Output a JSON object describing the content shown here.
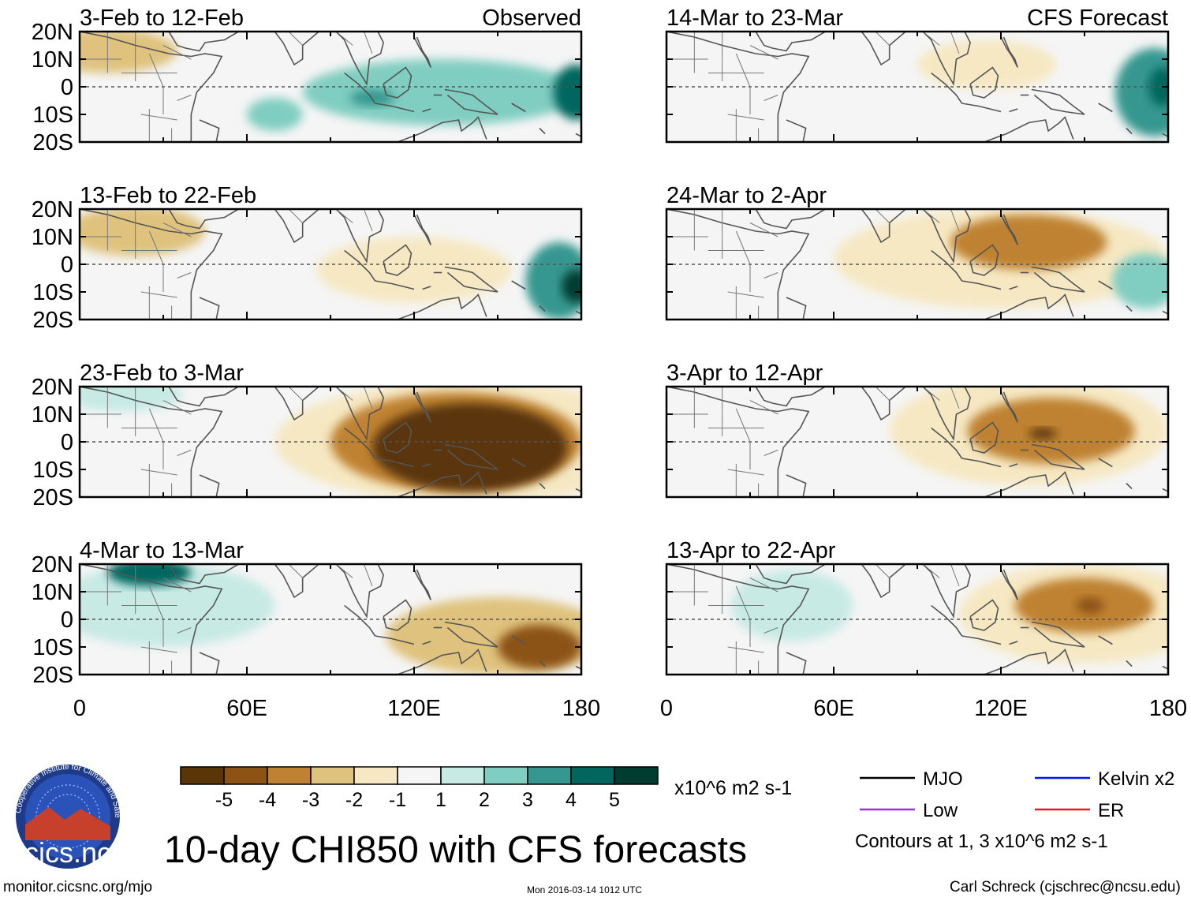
{
  "title": "10-day CHI850 with CFS forecasts",
  "footer": {
    "url": "monitor.cicsnc.org/mjo",
    "timestamp": "Mon 2016-03-14 1012 UTC",
    "author": "Carl Schreck (cjschrec@ncsu.edu)"
  },
  "logo": {
    "text": "cics.nc",
    "ring_text": "Cooperative Institute for Climate and Satellites"
  },
  "column_labels": {
    "left": "Observed",
    "right": "CFS Forecast"
  },
  "colorbar": {
    "colors": [
      "#5a3508",
      "#8c5314",
      "#bf8232",
      "#dfc27d",
      "#f6e8c3",
      "#f5f5f5",
      "#c7eae5",
      "#80cdc1",
      "#35978f",
      "#01665e",
      "#003c30"
    ],
    "labels": [
      "-5",
      "-4",
      "-3",
      "-2",
      "-1",
      "1",
      "2",
      "3",
      "4",
      "5"
    ],
    "units": "x10^6 m2 s-1"
  },
  "legend": {
    "items": [
      {
        "name": "MJO",
        "color": "#000000"
      },
      {
        "name": "Kelvin x2",
        "color": "#0018e8"
      },
      {
        "name": "Low",
        "color": "#9b30e0"
      },
      {
        "name": "ER",
        "color": "#e0201a"
      }
    ],
    "note": "Contours at 1, 3 x10^6 m2 s-1"
  },
  "chart_data": {
    "type": "heatmap",
    "variable": "10-day CHI850",
    "units": "x10^6 m2 s-1",
    "x_axis": {
      "range": [
        0,
        180
      ],
      "ticks": [
        "0",
        "60E",
        "120E",
        "180"
      ]
    },
    "y_axis": {
      "range": [
        -20,
        20
      ],
      "ticks": [
        "20N",
        "10N",
        "0",
        "10S",
        "20S"
      ]
    },
    "panels": [
      {
        "period": "3-Feb to 12-Feb",
        "source": "Observed",
        "blobs": [
          {
            "lon": 130,
            "lat": -2,
            "value": 2,
            "rx": 50,
            "ry": 12
          },
          {
            "lon": 105,
            "lat": -4,
            "value": 3,
            "rx": 8,
            "ry": 3
          },
          {
            "lon": 178,
            "lat": -2,
            "value": 4,
            "rx": 8,
            "ry": 10
          },
          {
            "lon": 70,
            "lat": -10,
            "value": 2,
            "rx": 10,
            "ry": 6
          },
          {
            "lon": 10,
            "lat": 13,
            "value": -2,
            "rx": 25,
            "ry": 8
          }
        ]
      },
      {
        "period": "13-Feb to 22-Feb",
        "source": "Observed",
        "blobs": [
          {
            "lon": 20,
            "lat": 12,
            "value": -2,
            "rx": 25,
            "ry": 9
          },
          {
            "lon": 120,
            "lat": -2,
            "value": -1,
            "rx": 35,
            "ry": 12
          },
          {
            "lon": 172,
            "lat": -6,
            "value": 3,
            "rx": 12,
            "ry": 14
          },
          {
            "lon": 178,
            "lat": -8,
            "value": 5,
            "rx": 5,
            "ry": 6
          }
        ]
      },
      {
        "period": "23-Feb to 3-Mar",
        "source": "Observed",
        "blobs": [
          {
            "lon": 140,
            "lat": 0,
            "value": -1,
            "rx": 70,
            "ry": 22
          },
          {
            "lon": 135,
            "lat": 0,
            "value": -3,
            "rx": 45,
            "ry": 18
          },
          {
            "lon": 140,
            "lat": -2,
            "value": -5,
            "rx": 35,
            "ry": 16
          },
          {
            "lon": 15,
            "lat": 17,
            "value": 1,
            "rx": 22,
            "ry": 6
          }
        ]
      },
      {
        "period": "4-Mar to 13-Mar",
        "source": "Observed",
        "blobs": [
          {
            "lon": 30,
            "lat": 5,
            "value": 1,
            "rx": 40,
            "ry": 15
          },
          {
            "lon": 25,
            "lat": 17,
            "value": 4,
            "rx": 15,
            "ry": 5
          },
          {
            "lon": 150,
            "lat": -6,
            "value": -2,
            "rx": 40,
            "ry": 14
          },
          {
            "lon": 165,
            "lat": -10,
            "value": -4,
            "rx": 15,
            "ry": 8
          }
        ]
      },
      {
        "period": "14-Mar to 23-Mar",
        "source": "CFS Forecast",
        "blobs": [
          {
            "lon": 115,
            "lat": 8,
            "value": -1,
            "rx": 25,
            "ry": 9
          },
          {
            "lon": 175,
            "lat": -2,
            "value": 3,
            "rx": 14,
            "ry": 16
          },
          {
            "lon": 178,
            "lat": 0,
            "value": 4,
            "rx": 5,
            "ry": 7
          }
        ]
      },
      {
        "period": "24-Mar to 2-Apr",
        "source": "CFS Forecast",
        "blobs": [
          {
            "lon": 120,
            "lat": 2,
            "value": -1,
            "rx": 60,
            "ry": 18
          },
          {
            "lon": 130,
            "lat": 8,
            "value": -3,
            "rx": 28,
            "ry": 10
          },
          {
            "lon": 172,
            "lat": -6,
            "value": 2,
            "rx": 12,
            "ry": 10
          }
        ]
      },
      {
        "period": "3-Apr to 12-Apr",
        "source": "CFS Forecast",
        "blobs": [
          {
            "lon": 130,
            "lat": 4,
            "value": -1,
            "rx": 50,
            "ry": 20
          },
          {
            "lon": 138,
            "lat": 4,
            "value": -3,
            "rx": 30,
            "ry": 12
          },
          {
            "lon": 135,
            "lat": 3,
            "value": -5,
            "rx": 5,
            "ry": 2
          }
        ]
      },
      {
        "period": "13-Apr to 22-Apr",
        "source": "CFS Forecast",
        "blobs": [
          {
            "lon": 45,
            "lat": 5,
            "value": 1,
            "rx": 22,
            "ry": 13
          },
          {
            "lon": 150,
            "lat": 2,
            "value": -1,
            "rx": 45,
            "ry": 18
          },
          {
            "lon": 150,
            "lat": 5,
            "value": -3,
            "rx": 25,
            "ry": 10
          },
          {
            "lon": 152,
            "lat": 5,
            "value": -4,
            "rx": 5,
            "ry": 3
          }
        ]
      }
    ]
  }
}
